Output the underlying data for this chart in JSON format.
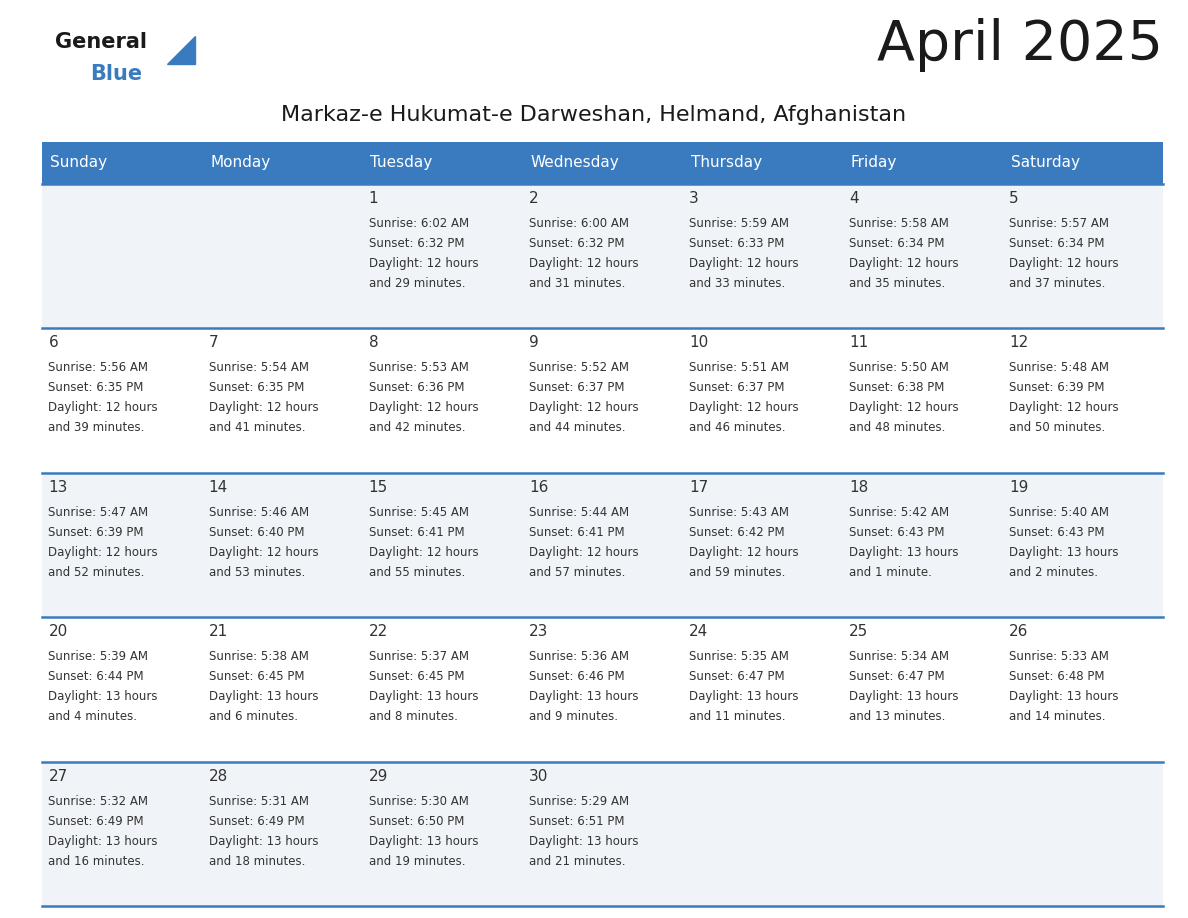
{
  "title": "April 2025",
  "subtitle": "Markaz-e Hukumat-e Darweshan, Helmand, Afghanistan",
  "days_of_week": [
    "Sunday",
    "Monday",
    "Tuesday",
    "Wednesday",
    "Thursday",
    "Friday",
    "Saturday"
  ],
  "header_bg": "#3a7bbf",
  "header_text": "#ffffff",
  "cell_bg_odd": "#f0f4f8",
  "cell_bg_even": "#ffffff",
  "title_color": "#1a1a1a",
  "subtitle_color": "#1a1a1a",
  "day_num_color": "#333333",
  "day_text_color": "#333333",
  "separator_color": "#3a7bbf",
  "calendar_data": {
    "1": {
      "dow": 2,
      "sunrise": "6:02 AM",
      "sunset": "6:32 PM",
      "daylight": "12 hours and 29 minutes."
    },
    "2": {
      "dow": 3,
      "sunrise": "6:00 AM",
      "sunset": "6:32 PM",
      "daylight": "12 hours and 31 minutes."
    },
    "3": {
      "dow": 4,
      "sunrise": "5:59 AM",
      "sunset": "6:33 PM",
      "daylight": "12 hours and 33 minutes."
    },
    "4": {
      "dow": 5,
      "sunrise": "5:58 AM",
      "sunset": "6:34 PM",
      "daylight": "12 hours and 35 minutes."
    },
    "5": {
      "dow": 6,
      "sunrise": "5:57 AM",
      "sunset": "6:34 PM",
      "daylight": "12 hours and 37 minutes."
    },
    "6": {
      "dow": 0,
      "sunrise": "5:56 AM",
      "sunset": "6:35 PM",
      "daylight": "12 hours and 39 minutes."
    },
    "7": {
      "dow": 1,
      "sunrise": "5:54 AM",
      "sunset": "6:35 PM",
      "daylight": "12 hours and 41 minutes."
    },
    "8": {
      "dow": 2,
      "sunrise": "5:53 AM",
      "sunset": "6:36 PM",
      "daylight": "12 hours and 42 minutes."
    },
    "9": {
      "dow": 3,
      "sunrise": "5:52 AM",
      "sunset": "6:37 PM",
      "daylight": "12 hours and 44 minutes."
    },
    "10": {
      "dow": 4,
      "sunrise": "5:51 AM",
      "sunset": "6:37 PM",
      "daylight": "12 hours and 46 minutes."
    },
    "11": {
      "dow": 5,
      "sunrise": "5:50 AM",
      "sunset": "6:38 PM",
      "daylight": "12 hours and 48 minutes."
    },
    "12": {
      "dow": 6,
      "sunrise": "5:48 AM",
      "sunset": "6:39 PM",
      "daylight": "12 hours and 50 minutes."
    },
    "13": {
      "dow": 0,
      "sunrise": "5:47 AM",
      "sunset": "6:39 PM",
      "daylight": "12 hours and 52 minutes."
    },
    "14": {
      "dow": 1,
      "sunrise": "5:46 AM",
      "sunset": "6:40 PM",
      "daylight": "12 hours and 53 minutes."
    },
    "15": {
      "dow": 2,
      "sunrise": "5:45 AM",
      "sunset": "6:41 PM",
      "daylight": "12 hours and 55 minutes."
    },
    "16": {
      "dow": 3,
      "sunrise": "5:44 AM",
      "sunset": "6:41 PM",
      "daylight": "12 hours and 57 minutes."
    },
    "17": {
      "dow": 4,
      "sunrise": "5:43 AM",
      "sunset": "6:42 PM",
      "daylight": "12 hours and 59 minutes."
    },
    "18": {
      "dow": 5,
      "sunrise": "5:42 AM",
      "sunset": "6:43 PM",
      "daylight": "13 hours and 1 minute."
    },
    "19": {
      "dow": 6,
      "sunrise": "5:40 AM",
      "sunset": "6:43 PM",
      "daylight": "13 hours and 2 minutes."
    },
    "20": {
      "dow": 0,
      "sunrise": "5:39 AM",
      "sunset": "6:44 PM",
      "daylight": "13 hours and 4 minutes."
    },
    "21": {
      "dow": 1,
      "sunrise": "5:38 AM",
      "sunset": "6:45 PM",
      "daylight": "13 hours and 6 minutes."
    },
    "22": {
      "dow": 2,
      "sunrise": "5:37 AM",
      "sunset": "6:45 PM",
      "daylight": "13 hours and 8 minutes."
    },
    "23": {
      "dow": 3,
      "sunrise": "5:36 AM",
      "sunset": "6:46 PM",
      "daylight": "13 hours and 9 minutes."
    },
    "24": {
      "dow": 4,
      "sunrise": "5:35 AM",
      "sunset": "6:47 PM",
      "daylight": "13 hours and 11 minutes."
    },
    "25": {
      "dow": 5,
      "sunrise": "5:34 AM",
      "sunset": "6:47 PM",
      "daylight": "13 hours and 13 minutes."
    },
    "26": {
      "dow": 6,
      "sunrise": "5:33 AM",
      "sunset": "6:48 PM",
      "daylight": "13 hours and 14 minutes."
    },
    "27": {
      "dow": 0,
      "sunrise": "5:32 AM",
      "sunset": "6:49 PM",
      "daylight": "13 hours and 16 minutes."
    },
    "28": {
      "dow": 1,
      "sunrise": "5:31 AM",
      "sunset": "6:49 PM",
      "daylight": "13 hours and 18 minutes."
    },
    "29": {
      "dow": 2,
      "sunrise": "5:30 AM",
      "sunset": "6:50 PM",
      "daylight": "13 hours and 19 minutes."
    },
    "30": {
      "dow": 3,
      "sunrise": "5:29 AM",
      "sunset": "6:51 PM",
      "daylight": "13 hours and 21 minutes."
    }
  }
}
